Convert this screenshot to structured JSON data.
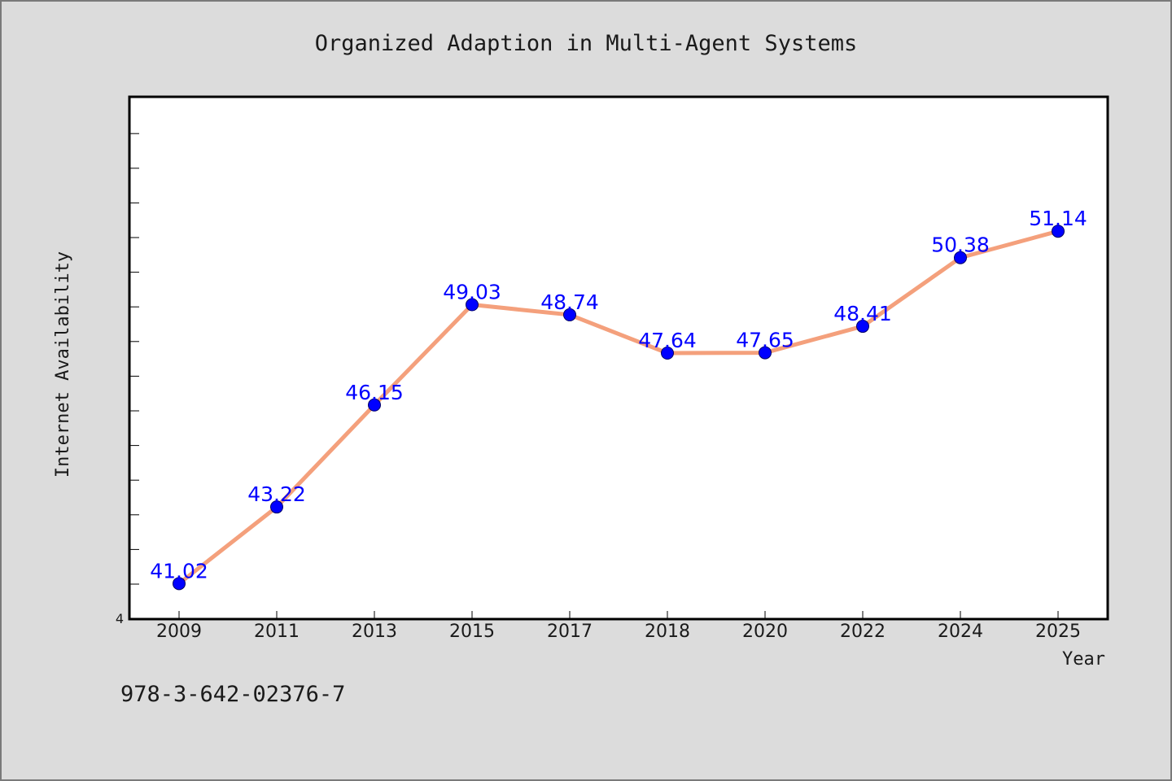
{
  "chart_data": {
    "type": "line",
    "title": "Organized Adaption in Multi-Agent Systems",
    "xlabel": "Year",
    "ylabel": "Internet Availability",
    "categories": [
      "2009",
      "2011",
      "2013",
      "2015",
      "2017",
      "2018",
      "2020",
      "2022",
      "2024",
      "2025"
    ],
    "series": [
      {
        "values": [
          41.02,
          43.22,
          46.15,
          49.03,
          48.74,
          47.64,
          47.65,
          48.41,
          50.38,
          51.14
        ]
      }
    ],
    "data_labels": [
      "41.02",
      "43.22",
      "46.15",
      "49.03",
      "48.74",
      "47.64",
      "47.65",
      "48.41",
      "50.38",
      "51.14"
    ],
    "yticks": [
      "4"
    ],
    "ylim": [
      40,
      55
    ],
    "grid": false,
    "line_color": "#f4a07c",
    "marker_color": "#0000ff",
    "label_color": "#0000ff"
  },
  "footer": {
    "isbn": "978-3-642-02376-7"
  }
}
